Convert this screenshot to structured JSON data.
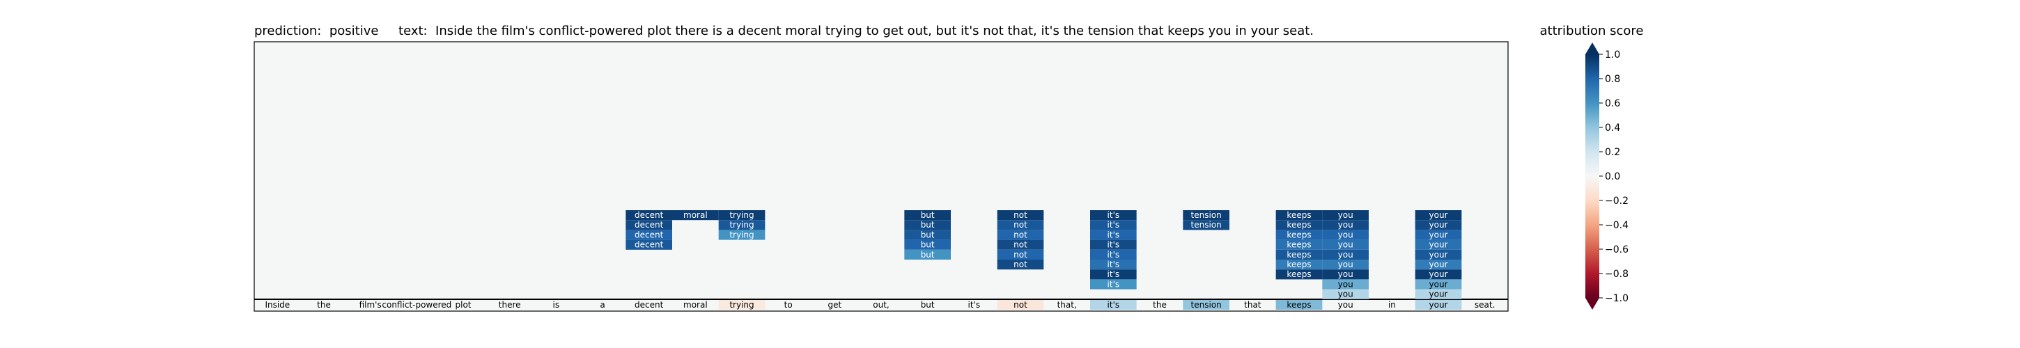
{
  "chart_data": {
    "type": "heatmap",
    "title": "prediction:  positive     text:  Inside the film's conflict-powered plot there is a decent moral trying to get out, but it's not that, it's the tension that keeps you in your seat.",
    "tokens": [
      "Inside",
      "the",
      "film's",
      "conflict-powered",
      "plot",
      "there",
      "is",
      "a",
      "decent",
      "moral",
      "trying",
      "to",
      "get",
      "out,",
      "but",
      "it's",
      "not",
      "that,",
      "it's",
      "the",
      "tension",
      "that",
      "keeps",
      "you",
      "in",
      "your",
      "seat."
    ],
    "token_scores": [
      0,
      0,
      0,
      0,
      0,
      0,
      0,
      0,
      0,
      0,
      -0.1,
      0,
      0,
      0,
      0,
      0,
      -0.12,
      0,
      0.3,
      0,
      0.4,
      0,
      0.45,
      0,
      0,
      0.3,
      0
    ],
    "columns": [
      {
        "token_index": 8,
        "label": "decent",
        "values": [
          0.95,
          0.9,
          0.8,
          0.85
        ]
      },
      {
        "token_index": 9,
        "label": "moral",
        "values": [
          0.95
        ]
      },
      {
        "token_index": 10,
        "label": "trying",
        "values": [
          0.95,
          0.85,
          0.6
        ]
      },
      {
        "token_index": 14,
        "label": "but",
        "values": [
          0.95,
          0.9,
          0.85,
          0.8,
          0.6
        ]
      },
      {
        "token_index": 16,
        "label": "not",
        "values": [
          0.95,
          0.85,
          0.8,
          0.9,
          0.8,
          0.9
        ]
      },
      {
        "token_index": 18,
        "label": "it's",
        "values": [
          0.95,
          0.85,
          0.8,
          0.9,
          0.8,
          0.75,
          0.95,
          0.6
        ]
      },
      {
        "token_index": 20,
        "label": "tension",
        "values": [
          0.95,
          0.9
        ]
      },
      {
        "token_index": 22,
        "label": "keeps",
        "values": [
          0.95,
          0.9,
          0.8,
          0.75,
          0.85,
          0.7,
          0.95
        ]
      },
      {
        "token_index": 23,
        "label": "you",
        "values": [
          0.95,
          0.9,
          0.8,
          0.75,
          0.85,
          0.7,
          0.95,
          0.5,
          0.3
        ]
      },
      {
        "token_index": 25,
        "label": "your",
        "values": [
          0.95,
          0.9,
          0.8,
          0.75,
          0.85,
          0.7,
          0.95,
          0.5,
          0.3
        ]
      }
    ],
    "colorbar": {
      "title": "attribution score",
      "range": [
        -1.0,
        1.0
      ],
      "ticks": [
        "1.0",
        "0.8",
        "0.6",
        "0.4",
        "0.2",
        "0.0",
        "−0.2",
        "−0.4",
        "−0.6",
        "−0.8",
        "−1.0"
      ],
      "tick_values": [
        1.0,
        0.8,
        0.6,
        0.4,
        0.2,
        0.0,
        -0.2,
        -0.4,
        -0.6,
        -0.8,
        -1.0
      ],
      "colormap": "RdBu"
    },
    "colors": {
      "background": "#f5f7f7"
    }
  }
}
